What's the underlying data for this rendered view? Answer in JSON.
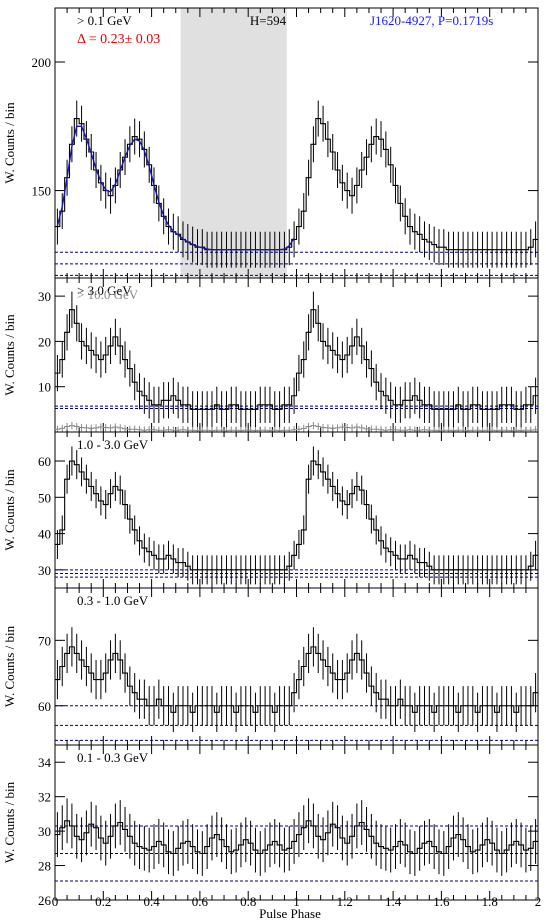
{
  "figure": {
    "xlabel": "Pulse Phase",
    "x_ticks": [
      "0",
      "0.2",
      "0.4",
      "0.6",
      "0.8",
      "1",
      "1.2",
      "1.4",
      "1.6",
      "1.8",
      "2"
    ]
  },
  "chart_data": [
    {
      "type": "histogram",
      "label": "> 0.1 GeV",
      "delta_text": "Δ = 0.23± 0.03",
      "h_text": "H=594",
      "source_text": "J1620-4927, P=0.1719s",
      "ylabel": "W. Counts / bin",
      "ylim": [
        116,
        221
      ],
      "y_ticks": [
        150,
        200
      ],
      "y_ticklabels": [
        "150",
        "200"
      ],
      "offpulse_range": [
        0.52,
        0.96
      ],
      "bg_lines": [
        117,
        121.5,
        126
      ],
      "fit_curve": true,
      "error": 7,
      "values": [
        136,
        142,
        155,
        168,
        178,
        176,
        170,
        165,
        158,
        153,
        150,
        148,
        152,
        158,
        163,
        168,
        171,
        170,
        166,
        160,
        152,
        145,
        140,
        136,
        134,
        133,
        131,
        130,
        129,
        128,
        128,
        127,
        127,
        127,
        127,
        127,
        127,
        127,
        127,
        127,
        127,
        127,
        127,
        127,
        127,
        127,
        127,
        127,
        128,
        131
      ]
    },
    {
      "type": "histogram",
      "label": "> 3.0 GeV",
      "label2": "> 10.0 GeV",
      "ylabel": "W. Counts / bin",
      "ylim": [
        0,
        34
      ],
      "y_ticks": [
        10,
        20,
        30
      ],
      "y_ticklabels": [
        "10",
        "20",
        "30"
      ],
      "bg_lines": [
        5.2,
        5.7
      ],
      "error": 4,
      "values": [
        13,
        16,
        22,
        27,
        24,
        20,
        19,
        18,
        17,
        16,
        17,
        19,
        21,
        19,
        16,
        14,
        11,
        9,
        8,
        7,
        6,
        6,
        7,
        7,
        8,
        7,
        6,
        6,
        5,
        5,
        5,
        5,
        5,
        6,
        5,
        5,
        6,
        6,
        5,
        5,
        5,
        5,
        6,
        6,
        6,
        5,
        5,
        6,
        6,
        8
      ],
      "values_secondary": [
        0.6,
        0.8,
        1.2,
        1.4,
        1.2,
        1.0,
        0.9,
        0.8,
        0.9,
        1.1,
        1.0,
        0.9,
        1.1,
        0.9,
        0.7,
        0.6,
        0.6,
        0.5,
        0.4,
        0.5,
        0.5,
        0.4,
        0.4,
        0.5,
        0.4,
        0.4,
        0.5,
        0.4,
        0.4,
        0.3,
        0.4,
        0.4,
        0.3,
        0.4,
        0.4,
        0.3,
        0.4,
        0.4,
        0.3,
        0.4,
        0.4,
        0.3,
        0.4,
        0.4,
        0.3,
        0.4,
        0.3,
        0.4,
        0.4,
        0.5
      ]
    },
    {
      "type": "histogram",
      "label": "1.0 - 3.0 GeV",
      "ylabel": "W. Counts / bin",
      "ylim": [
        25,
        68
      ],
      "y_ticks": [
        30,
        40,
        50,
        60
      ],
      "y_ticklabels": [
        "30",
        "40",
        "50",
        "60"
      ],
      "bg_lines": [
        28,
        29,
        30
      ],
      "error": 4,
      "values": [
        37,
        41,
        55,
        60,
        59,
        57,
        55,
        53,
        51,
        49,
        48,
        51,
        53,
        52,
        48,
        44,
        41,
        38,
        36,
        35,
        34,
        33,
        33,
        34,
        33,
        32,
        32,
        31,
        30,
        30,
        30,
        30,
        30,
        30,
        30,
        30,
        30,
        30,
        30,
        30,
        30,
        30,
        30,
        30,
        30,
        30,
        30,
        30,
        31,
        34
      ]
    },
    {
      "type": "histogram",
      "label": "0.3 - 1.0 GeV",
      "ylabel": "W. Counts / bin",
      "ylim": [
        54,
        78
      ],
      "y_ticks": [
        60,
        70
      ],
      "y_ticklabels": [
        "60",
        "70"
      ],
      "bg_lines": [
        54.7,
        57,
        60
      ],
      "error": 3,
      "values": [
        64,
        66,
        68,
        69,
        68,
        67,
        66,
        65,
        64,
        64,
        65,
        67,
        68,
        67,
        65,
        63,
        62,
        61,
        61,
        60,
        60,
        61,
        60,
        60,
        59,
        60,
        60,
        60,
        59,
        60,
        60,
        60,
        60,
        59,
        60,
        60,
        60,
        59,
        60,
        60,
        60,
        59,
        60,
        60,
        60,
        59,
        60,
        60,
        60,
        62
      ]
    },
    {
      "type": "histogram",
      "label": "0.1 - 0.3 GeV",
      "ylabel": "W. Counts / bin",
      "ylim": [
        26,
        35
      ],
      "y_ticks": [
        26,
        28,
        30,
        32,
        34
      ],
      "y_ticklabels": [
        "26",
        "28",
        "30",
        "32",
        "34"
      ],
      "bg_lines": [
        27.1,
        28.7,
        30.3
      ],
      "error": 1.3,
      "values": [
        29.8,
        30.2,
        30.6,
        30.3,
        29.7,
        29.5,
        29.9,
        30.4,
        30.2,
        29.6,
        29.3,
        29.7,
        30.3,
        30.5,
        30.1,
        29.7,
        29.3,
        29.1,
        29.0,
        28.9,
        29.1,
        29.4,
        29.2,
        28.8,
        28.7,
        29.0,
        29.3,
        29.4,
        29.1,
        28.8,
        28.7,
        29.1,
        29.6,
        29.8,
        29.5,
        29.1,
        28.8,
        28.9,
        29.2,
        29.5,
        29.3,
        28.9,
        28.7,
        28.9,
        29.2,
        29.4,
        29.2,
        28.9,
        29.0,
        29.4
      ]
    }
  ]
}
